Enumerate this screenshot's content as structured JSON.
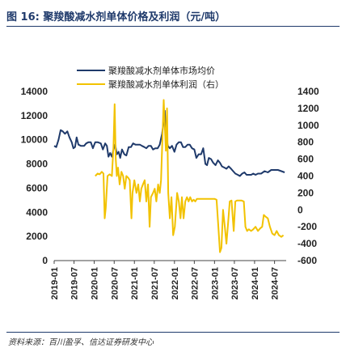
{
  "figure": {
    "title": "图 16:  聚羧酸减水剂单体价格及利润（元/吨）",
    "source": "资料来源：百川盈孚、信达证券研发中心"
  },
  "chart_data": {
    "type": "line",
    "legend": {
      "placement": "top-center"
    },
    "x_ticks": [
      "2019-01",
      "2019-07",
      "2020-01",
      "2020-07",
      "2021-01",
      "2021-07",
      "2022-01",
      "2022-07",
      "2023-01",
      "2023-07",
      "2024-01",
      "2024-07"
    ],
    "x_range": [
      "2019-01-01",
      "2024-10-15"
    ],
    "y_left": {
      "range": [
        0,
        14000
      ],
      "ticks": [
        0,
        2000,
        4000,
        6000,
        8000,
        10000,
        12000,
        14000
      ]
    },
    "y_right": {
      "range": [
        -600,
        1400
      ],
      "ticks": [
        -600,
        -400,
        -200,
        0,
        200,
        400,
        600,
        800,
        1000,
        1200,
        1400
      ]
    },
    "series": [
      {
        "name": "聚羧酸减水剂单体市场均价",
        "axis": "left",
        "color": "#1f3a6b",
        "points": [
          [
            "2019-01-01",
            9500
          ],
          [
            "2019-01-20",
            9400
          ],
          [
            "2019-02-10",
            10000
          ],
          [
            "2019-03-01",
            10800
          ],
          [
            "2019-03-20",
            10700
          ],
          [
            "2019-04-10",
            10500
          ],
          [
            "2019-05-01",
            10700
          ],
          [
            "2019-05-20",
            10200
          ],
          [
            "2019-06-10",
            9800
          ],
          [
            "2019-06-25",
            9300
          ],
          [
            "2019-07-10",
            9400
          ],
          [
            "2019-07-25",
            10200
          ],
          [
            "2019-08-10",
            9600
          ],
          [
            "2019-09-01",
            9500
          ],
          [
            "2019-10-01",
            9500
          ],
          [
            "2019-10-20",
            9700
          ],
          [
            "2019-11-10",
            9800
          ],
          [
            "2019-12-01",
            9800
          ],
          [
            "2019-12-20",
            9300
          ],
          [
            "2020-01-10",
            9800
          ],
          [
            "2020-02-01",
            9800
          ],
          [
            "2020-03-01",
            9700
          ],
          [
            "2020-03-20",
            9200
          ],
          [
            "2020-04-10",
            9700
          ],
          [
            "2020-04-25",
            9500
          ],
          [
            "2020-05-10",
            8600
          ],
          [
            "2020-05-25",
            8900
          ],
          [
            "2020-06-10",
            8600
          ],
          [
            "2020-06-25",
            9200
          ],
          [
            "2020-07-10",
            9600
          ],
          [
            "2020-07-25",
            8800
          ],
          [
            "2020-08-10",
            9000
          ],
          [
            "2020-08-25",
            8500
          ],
          [
            "2020-09-10",
            9200
          ],
          [
            "2020-10-01",
            8800
          ],
          [
            "2020-10-20",
            8700
          ],
          [
            "2020-11-10",
            9400
          ],
          [
            "2020-12-01",
            9400
          ],
          [
            "2020-12-20",
            9700
          ],
          [
            "2021-01-10",
            9600
          ],
          [
            "2021-02-01",
            9600
          ],
          [
            "2021-02-20",
            9600
          ],
          [
            "2021-03-10",
            9500
          ],
          [
            "2021-04-01",
            9400
          ],
          [
            "2021-04-20",
            9300
          ],
          [
            "2021-05-10",
            9500
          ],
          [
            "2021-06-01",
            9500
          ],
          [
            "2021-06-20",
            9200
          ],
          [
            "2021-07-10",
            9300
          ],
          [
            "2021-08-01",
            9300
          ],
          [
            "2021-08-20",
            9600
          ],
          [
            "2021-09-10",
            10500
          ],
          [
            "2021-09-25",
            11500
          ],
          [
            "2021-10-05",
            12400
          ],
          [
            "2021-10-15",
            10500
          ],
          [
            "2021-11-01",
            9500
          ],
          [
            "2021-11-20",
            9300
          ],
          [
            "2021-12-10",
            9500
          ],
          [
            "2022-01-01",
            9000
          ],
          [
            "2022-01-20",
            9600
          ],
          [
            "2022-02-10",
            9800
          ],
          [
            "2022-03-01",
            9800
          ],
          [
            "2022-03-20",
            9400
          ],
          [
            "2022-04-10",
            9400
          ],
          [
            "2022-05-01",
            9600
          ],
          [
            "2022-05-20",
            9600
          ],
          [
            "2022-06-10",
            9300
          ],
          [
            "2022-07-01",
            9200
          ],
          [
            "2022-07-20",
            8500
          ],
          [
            "2022-08-10",
            8800
          ],
          [
            "2022-09-01",
            8800
          ],
          [
            "2022-09-20",
            9300
          ],
          [
            "2022-10-10",
            8000
          ],
          [
            "2022-10-25",
            7900
          ],
          [
            "2022-11-10",
            8500
          ],
          [
            "2022-12-01",
            8400
          ],
          [
            "2022-12-20",
            8100
          ],
          [
            "2023-01-10",
            7900
          ],
          [
            "2023-02-01",
            8300
          ],
          [
            "2023-02-20",
            8100
          ],
          [
            "2023-03-10",
            7800
          ],
          [
            "2023-04-01",
            7700
          ],
          [
            "2023-04-20",
            7600
          ],
          [
            "2023-05-10",
            7800
          ],
          [
            "2023-06-01",
            7600
          ],
          [
            "2023-06-20",
            7400
          ],
          [
            "2023-07-10",
            7200
          ],
          [
            "2023-08-01",
            7100
          ],
          [
            "2023-08-20",
            7000
          ],
          [
            "2023-09-10",
            7200
          ],
          [
            "2023-10-01",
            7300
          ],
          [
            "2023-10-20",
            7100
          ],
          [
            "2023-11-10",
            7100
          ],
          [
            "2023-12-01",
            7100
          ],
          [
            "2023-12-20",
            7200
          ],
          [
            "2024-01-10",
            7100
          ],
          [
            "2024-02-01",
            7200
          ],
          [
            "2024-03-01",
            7200
          ],
          [
            "2024-04-01",
            7400
          ],
          [
            "2024-05-01",
            7300
          ],
          [
            "2024-06-01",
            7500
          ],
          [
            "2024-07-01",
            7500
          ],
          [
            "2024-08-01",
            7500
          ],
          [
            "2024-09-01",
            7400
          ],
          [
            "2024-10-01",
            7300
          ]
        ]
      },
      {
        "name": "聚羧酸减水剂单体利润（右）",
        "axis": "right",
        "color": "#f2c200",
        "points": [
          [
            "2020-01-10",
            400
          ],
          [
            "2020-02-01",
            430
          ],
          [
            "2020-02-20",
            420
          ],
          [
            "2020-03-10",
            450
          ],
          [
            "2020-03-25",
            430
          ],
          [
            "2020-04-05",
            -100
          ],
          [
            "2020-04-15",
            20
          ],
          [
            "2020-05-01",
            400
          ],
          [
            "2020-05-20",
            420
          ],
          [
            "2020-06-10",
            400
          ],
          [
            "2020-06-25",
            750
          ],
          [
            "2020-07-05",
            1250
          ],
          [
            "2020-07-15",
            600
          ],
          [
            "2020-07-25",
            400
          ],
          [
            "2020-08-05",
            500
          ],
          [
            "2020-08-20",
            300
          ],
          [
            "2020-09-05",
            450
          ],
          [
            "2020-09-20",
            400
          ],
          [
            "2020-10-05",
            250
          ],
          [
            "2020-10-20",
            400
          ],
          [
            "2020-11-05",
            380
          ],
          [
            "2020-11-20",
            350
          ],
          [
            "2020-12-05",
            -100
          ],
          [
            "2020-12-15",
            200
          ],
          [
            "2021-01-01",
            350
          ],
          [
            "2021-01-20",
            200
          ],
          [
            "2021-02-05",
            300
          ],
          [
            "2021-02-20",
            100
          ],
          [
            "2021-03-05",
            250
          ],
          [
            "2021-03-20",
            300
          ],
          [
            "2021-04-05",
            350
          ],
          [
            "2021-04-20",
            100
          ],
          [
            "2021-05-05",
            300
          ],
          [
            "2021-05-20",
            -200
          ],
          [
            "2021-06-01",
            150
          ],
          [
            "2021-06-20",
            200
          ],
          [
            "2021-07-05",
            250
          ],
          [
            "2021-07-20",
            100
          ],
          [
            "2021-08-05",
            300
          ],
          [
            "2021-08-20",
            200
          ],
          [
            "2021-09-01",
            350
          ],
          [
            "2021-09-15",
            900
          ],
          [
            "2021-09-25",
            1300
          ],
          [
            "2021-10-05",
            1000
          ],
          [
            "2021-10-15",
            700
          ],
          [
            "2021-10-25",
            1200
          ],
          [
            "2021-11-05",
            200
          ],
          [
            "2021-11-20",
            -100
          ],
          [
            "2021-12-05",
            150
          ],
          [
            "2021-12-20",
            -300
          ],
          [
            "2022-01-05",
            -200
          ],
          [
            "2022-01-25",
            200
          ],
          [
            "2022-02-10",
            100
          ],
          [
            "2022-02-25",
            -100
          ],
          [
            "2022-03-10",
            150
          ],
          [
            "2022-03-25",
            -100
          ],
          [
            "2022-04-10",
            100
          ],
          [
            "2022-04-25",
            150
          ],
          [
            "2022-05-10",
            100
          ],
          [
            "2022-05-25",
            150
          ],
          [
            "2022-06-10",
            100
          ],
          [
            "2022-06-25",
            120
          ],
          [
            "2022-07-10",
            100
          ],
          [
            "2022-07-25",
            130
          ],
          [
            "2022-08-10",
            130
          ],
          [
            "2022-09-01",
            130
          ],
          [
            "2022-09-20",
            130
          ],
          [
            "2022-10-10",
            130
          ],
          [
            "2022-11-01",
            130
          ],
          [
            "2022-11-20",
            130
          ],
          [
            "2022-12-10",
            130
          ],
          [
            "2023-01-01",
            130
          ],
          [
            "2023-01-20",
            120
          ],
          [
            "2023-02-05",
            -200
          ],
          [
            "2023-02-20",
            -500
          ],
          [
            "2023-03-05",
            -450
          ],
          [
            "2023-03-20",
            0
          ],
          [
            "2023-04-05",
            -200
          ],
          [
            "2023-04-20",
            -400
          ],
          [
            "2023-05-05",
            -150
          ],
          [
            "2023-05-20",
            100
          ],
          [
            "2023-06-05",
            110
          ],
          [
            "2023-06-25",
            -250
          ],
          [
            "2023-07-10",
            100
          ],
          [
            "2023-07-25",
            110
          ],
          [
            "2023-08-15",
            110
          ],
          [
            "2023-09-05",
            110
          ],
          [
            "2023-09-25",
            100
          ],
          [
            "2023-10-10",
            -200
          ],
          [
            "2023-10-25",
            -250
          ],
          [
            "2023-11-10",
            -230
          ],
          [
            "2023-12-01",
            -250
          ],
          [
            "2023-12-20",
            -230
          ],
          [
            "2024-01-10",
            -200
          ],
          [
            "2024-02-01",
            -250
          ],
          [
            "2024-02-20",
            -220
          ],
          [
            "2024-03-10",
            -200
          ],
          [
            "2024-03-25",
            -60
          ],
          [
            "2024-04-10",
            -80
          ],
          [
            "2024-05-01",
            -100
          ],
          [
            "2024-05-20",
            -200
          ],
          [
            "2024-06-10",
            -280
          ],
          [
            "2024-07-01",
            -300
          ],
          [
            "2024-07-20",
            -250
          ],
          [
            "2024-08-10",
            -300
          ],
          [
            "2024-09-01",
            -320
          ],
          [
            "2024-09-20",
            -300
          ]
        ]
      }
    ]
  }
}
